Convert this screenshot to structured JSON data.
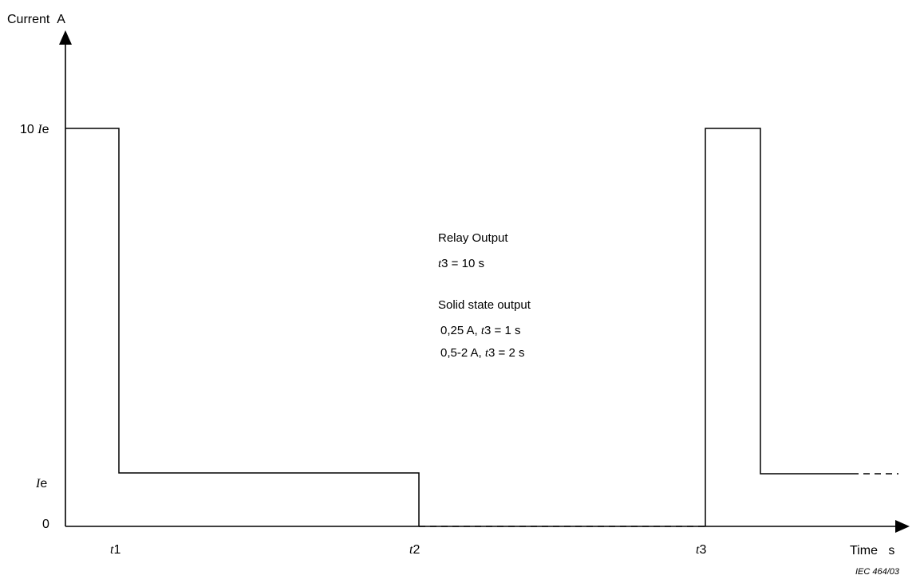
{
  "axes": {
    "y_label": "Current",
    "y_unit": "A",
    "x_label": "Time",
    "x_unit": "s"
  },
  "y_ticks": {
    "peak_coef": "10",
    "peak_var": "I",
    "peak_sub": "e",
    "nominal_var": "I",
    "nominal_sub": "e",
    "zero": "0"
  },
  "x_ticks": [
    {
      "var": "t",
      "num": "1"
    },
    {
      "var": "t",
      "num": "2"
    },
    {
      "var": "t",
      "num": "3"
    }
  ],
  "notes": {
    "relay_title": "Relay Output",
    "relay_line_var": "t",
    "relay_line_rest": "3 = 10 s",
    "solid_title": "Solid state output",
    "solid_line1_pre": "0,25 A, ",
    "solid_line1_var": "t",
    "solid_line1_post": "3 = 1 s",
    "solid_line2_pre": "0,5-2 A, ",
    "solid_line2_var": "t",
    "solid_line2_post": "3 = 2 s"
  },
  "reference": "IEC  464/03"
}
